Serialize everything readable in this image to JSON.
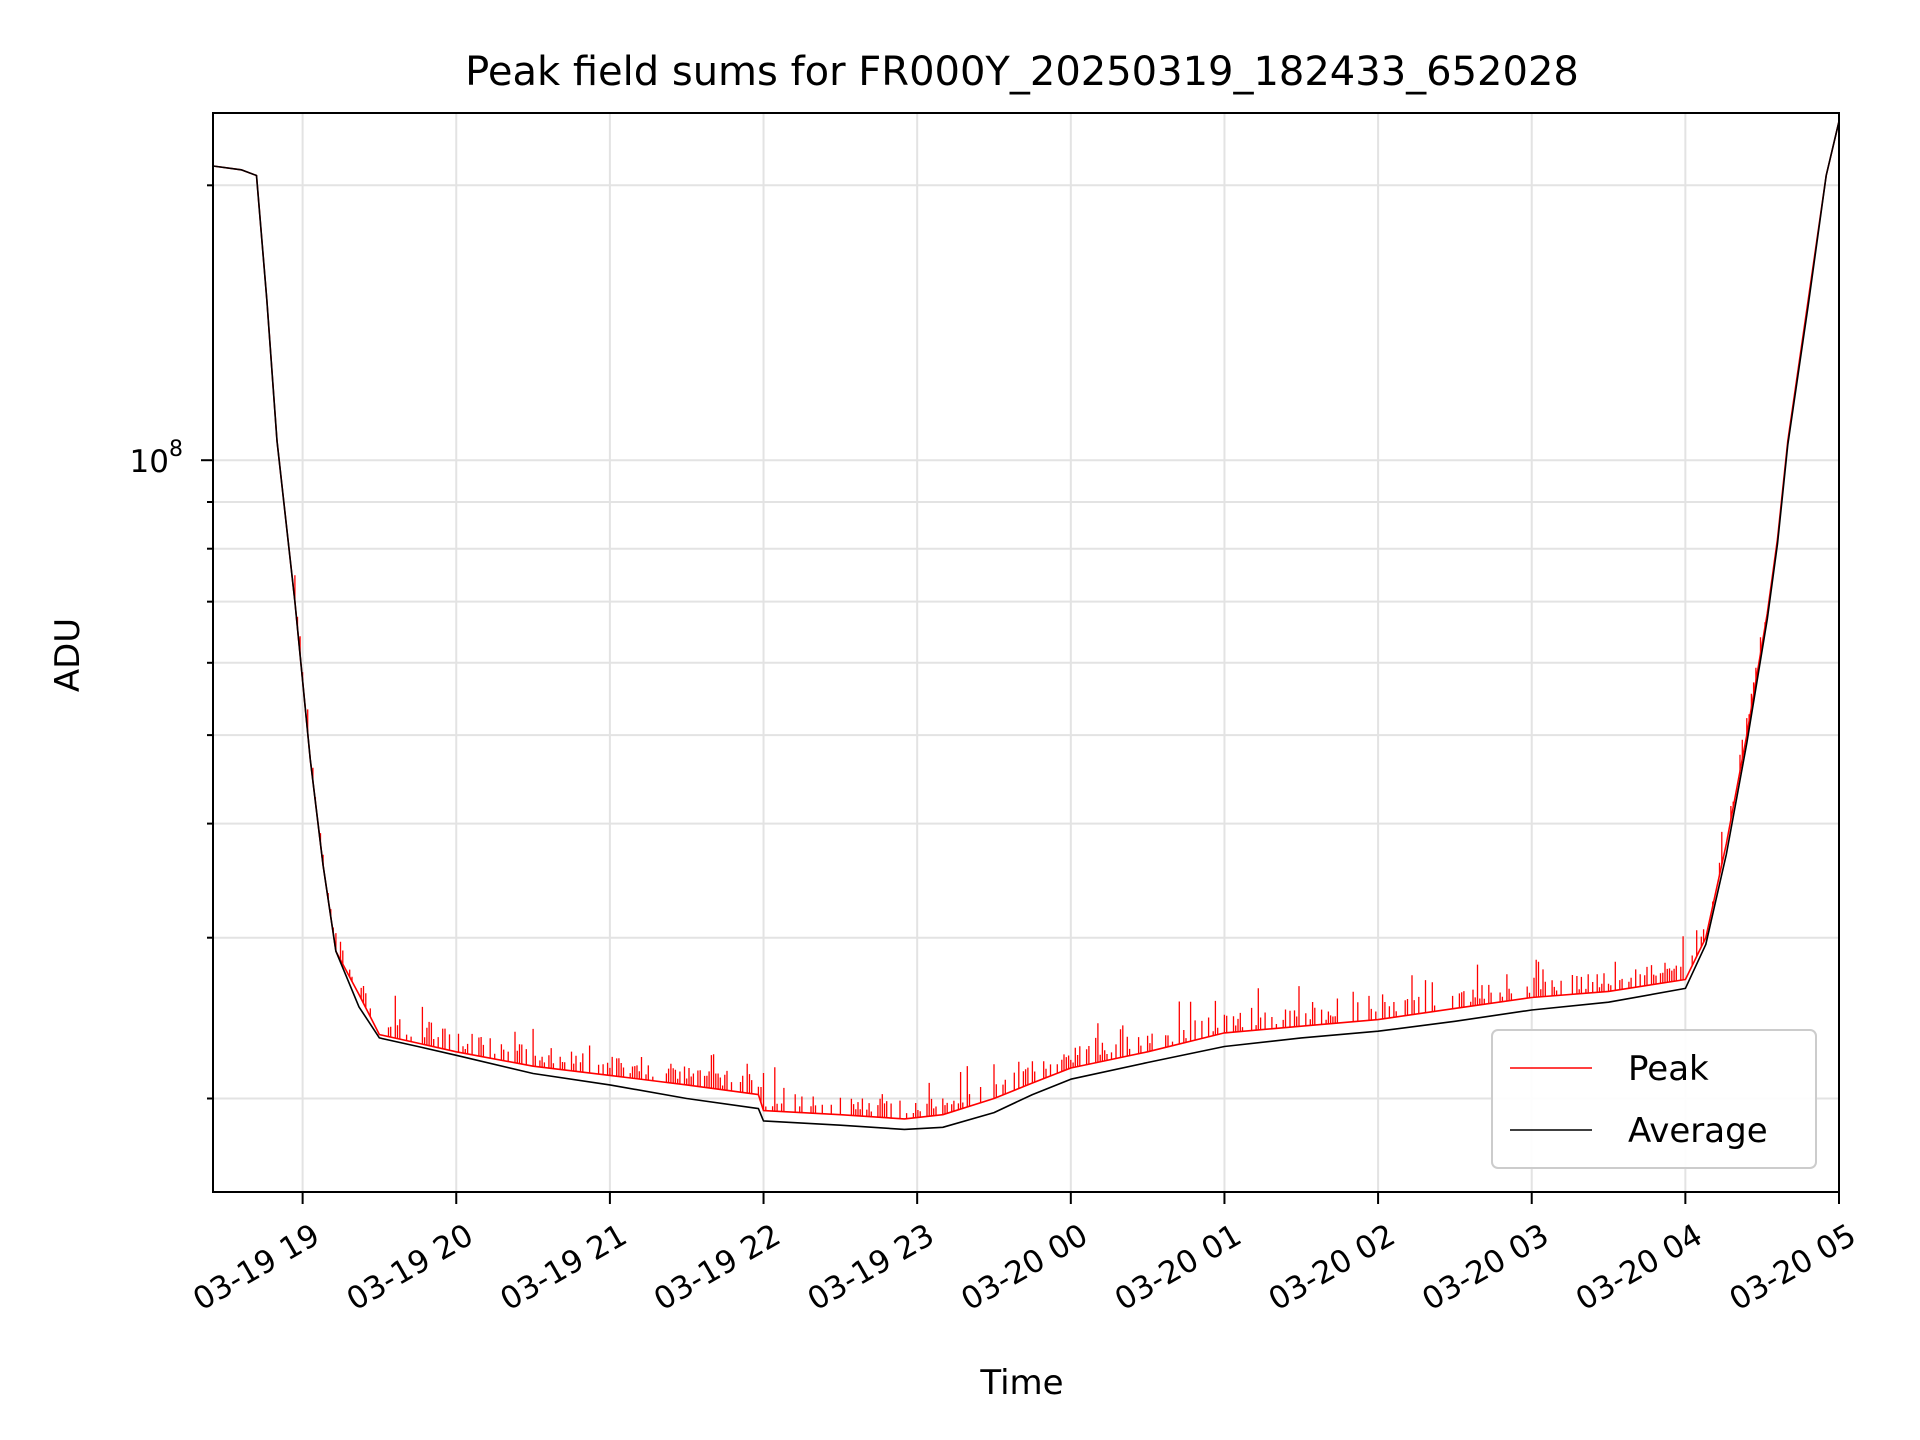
{
  "chart_data": {
    "type": "line",
    "title": "Peak field sums for FR000Y_20250319_182433_652028",
    "xlabel": "Time",
    "ylabel": "ADU",
    "y_scale": "log",
    "ylim": [
      15800000,
      240000000
    ],
    "xlim": [
      "2025-03-19 18:25",
      "2025-03-20 05:00"
    ],
    "grid": true,
    "legend_position": "lower-right",
    "x_ticks": [
      "03-19 19",
      "03-19 20",
      "03-19 21",
      "03-19 22",
      "03-19 23",
      "03-20 00",
      "03-20 01",
      "03-20 02",
      "03-20 03",
      "03-20 04",
      "03-20 05"
    ],
    "y_tick_major": {
      "value": 100000000,
      "base": "10",
      "exponent": "8"
    },
    "series": [
      {
        "name": "Peak",
        "color": "#ff0000",
        "style": "spiky",
        "x": [
          "2025-03-19 18:25",
          "2025-03-19 18:36",
          "2025-03-19 18:42",
          "2025-03-19 18:46",
          "2025-03-19 18:50",
          "2025-03-19 18:57",
          "2025-03-19 19:03",
          "2025-03-19 19:08",
          "2025-03-19 19:13",
          "2025-03-19 19:22",
          "2025-03-19 19:30",
          "2025-03-19 19:45",
          "2025-03-19 20:00",
          "2025-03-19 20:30",
          "2025-03-19 21:00",
          "2025-03-19 21:30",
          "2025-03-19 21:58",
          "2025-03-19 22:00",
          "2025-03-19 22:30",
          "2025-03-19 22:55",
          "2025-03-19 23:10",
          "2025-03-19 23:30",
          "2025-03-19 23:45",
          "2025-03-20 00:00",
          "2025-03-20 00:30",
          "2025-03-20 01:00",
          "2025-03-20 01:30",
          "2025-03-20 02:00",
          "2025-03-20 02:30",
          "2025-03-20 03:00",
          "2025-03-20 03:30",
          "2025-03-20 04:00",
          "2025-03-20 04:08",
          "2025-03-20 04:16",
          "2025-03-20 04:24",
          "2025-03-20 04:32",
          "2025-03-20 04:36",
          "2025-03-20 04:40",
          "2025-03-20 04:48",
          "2025-03-20 04:55",
          "2025-03-20 05:00"
        ],
        "values": [
          210000000,
          208000000,
          205000000,
          150000000,
          105000000,
          70000000,
          47000000,
          36000000,
          29000000,
          26000000,
          23500000,
          23000000,
          22500000,
          21700000,
          21200000,
          20700000,
          20200000,
          19400000,
          19200000,
          19000000,
          19200000,
          20000000,
          20800000,
          21600000,
          22500000,
          23600000,
          24000000,
          24400000,
          25100000,
          25800000,
          26200000,
          27000000,
          30000000,
          38000000,
          50000000,
          68000000,
          82000000,
          105000000,
          150000000,
          205000000,
          235000000
        ]
      },
      {
        "name": "Average",
        "color": "#000000",
        "style": "solid",
        "x": [
          "2025-03-19 18:25",
          "2025-03-19 18:36",
          "2025-03-19 18:42",
          "2025-03-19 18:46",
          "2025-03-19 18:50",
          "2025-03-19 18:57",
          "2025-03-19 19:03",
          "2025-03-19 19:08",
          "2025-03-19 19:13",
          "2025-03-19 19:22",
          "2025-03-19 19:30",
          "2025-03-19 19:45",
          "2025-03-19 20:00",
          "2025-03-19 20:30",
          "2025-03-19 21:00",
          "2025-03-19 21:30",
          "2025-03-19 21:58",
          "2025-03-19 22:00",
          "2025-03-19 22:30",
          "2025-03-19 22:55",
          "2025-03-19 23:10",
          "2025-03-19 23:30",
          "2025-03-19 23:45",
          "2025-03-20 00:00",
          "2025-03-20 00:30",
          "2025-03-20 01:00",
          "2025-03-20 01:30",
          "2025-03-20 02:00",
          "2025-03-20 02:30",
          "2025-03-20 03:00",
          "2025-03-20 03:30",
          "2025-03-20 04:00",
          "2025-03-20 04:08",
          "2025-03-20 04:16",
          "2025-03-20 04:24",
          "2025-03-20 04:32",
          "2025-03-20 04:36",
          "2025-03-20 04:40",
          "2025-03-20 04:48",
          "2025-03-20 04:55",
          "2025-03-20 05:00"
        ],
        "values": [
          210000000,
          208000000,
          205000000,
          150000000,
          105000000,
          70000000,
          47000000,
          36000000,
          29000000,
          25200000,
          23300000,
          22800000,
          22300000,
          21300000,
          20700000,
          20000000,
          19500000,
          18900000,
          18700000,
          18500000,
          18600000,
          19300000,
          20200000,
          21000000,
          21900000,
          22800000,
          23300000,
          23700000,
          24300000,
          25000000,
          25500000,
          26400000,
          29500000,
          37000000,
          49000000,
          67000000,
          81000000,
          104000000,
          148000000,
          205000000,
          235000000
        ]
      }
    ]
  }
}
